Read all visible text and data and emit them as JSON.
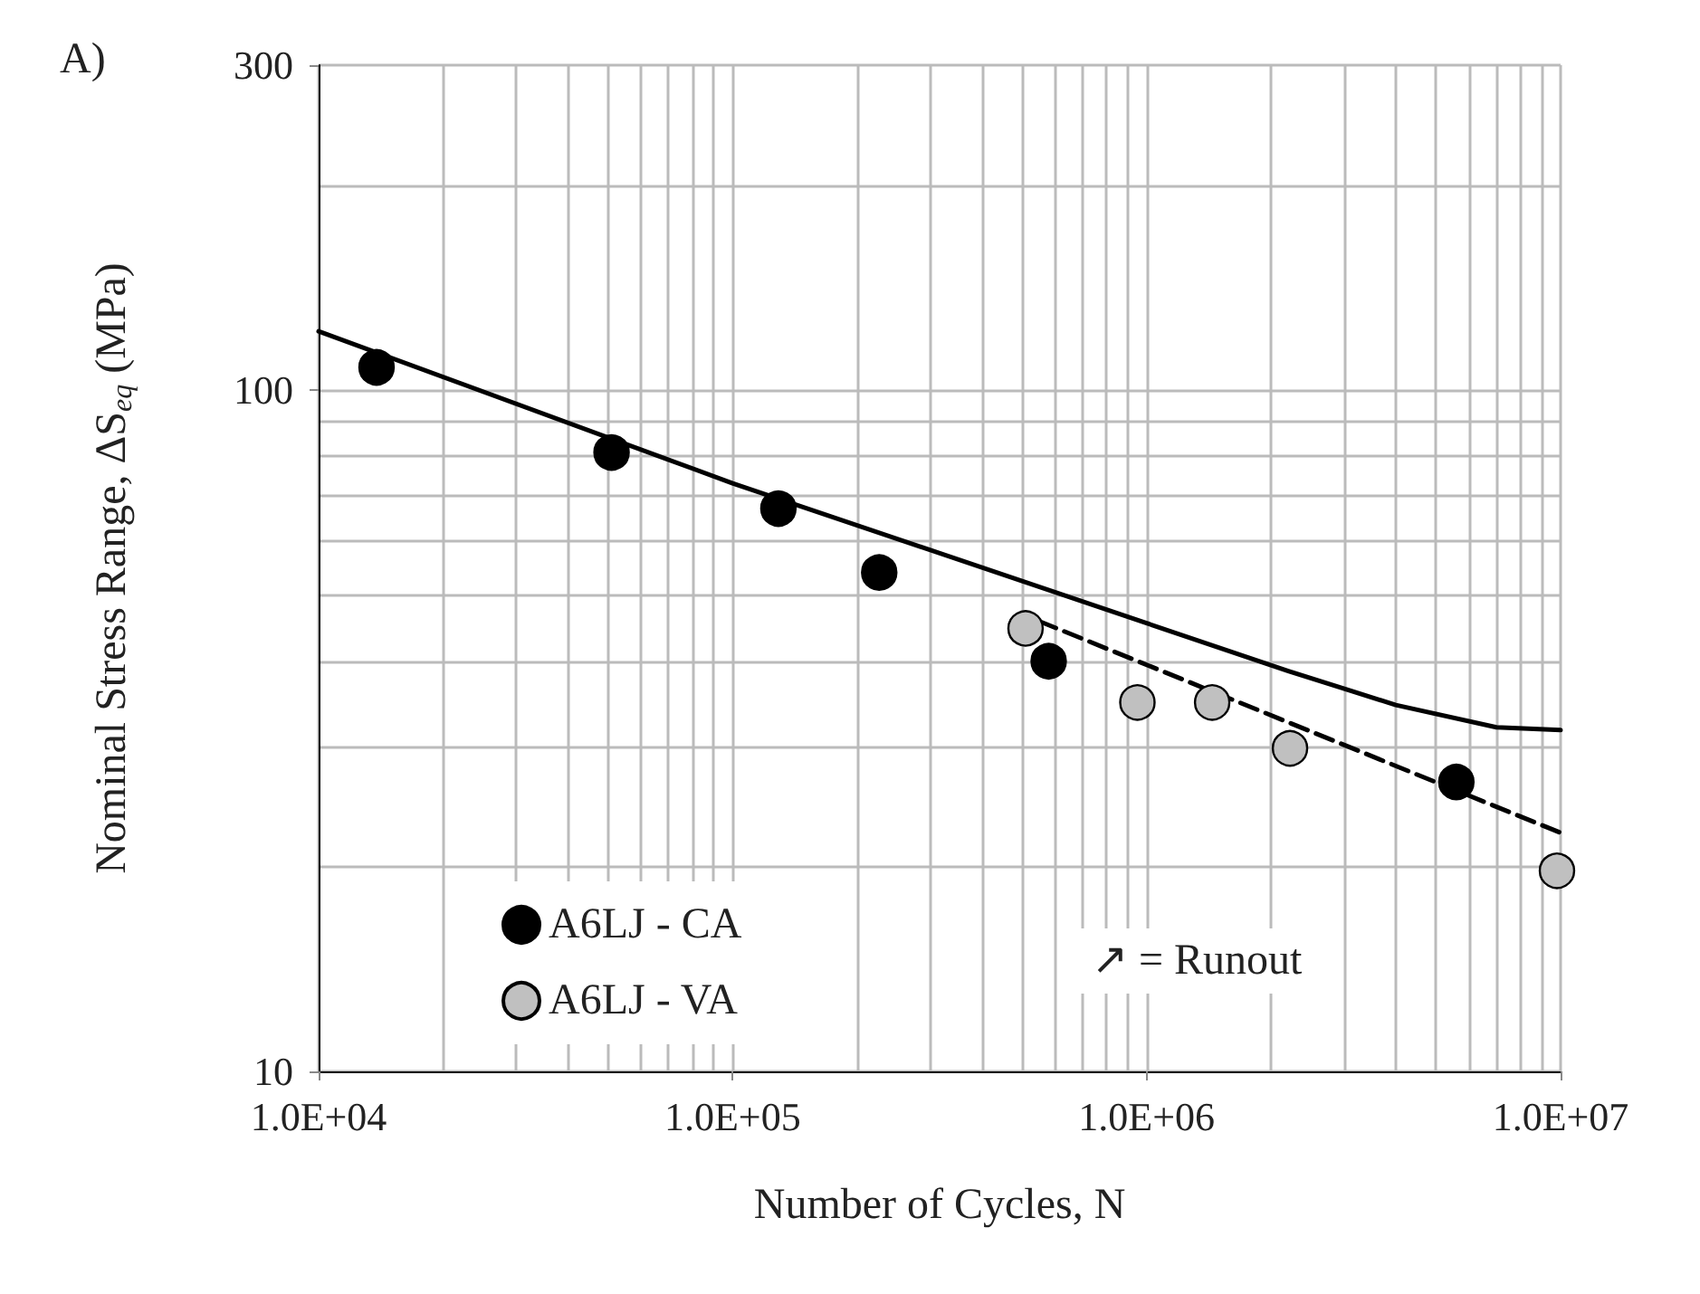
{
  "chart_data": {
    "type": "scatter",
    "title": "A)",
    "xlabel": "Number of Cycles, N",
    "ylabel": "Nominal Stress Range, ΔS$_{eq}$ (MPa)",
    "log": "xy",
    "grid": true,
    "legend": "bottom left",
    "xlim": [
      10000,
      10000000
    ],
    "xticks": [
      {
        "value": 10000,
        "label": "1.0E+04"
      },
      {
        "value": 100000,
        "label": "1.0E+05"
      },
      {
        "value": 1000000,
        "label": "1.0E+06"
      },
      {
        "value": 10000000,
        "label": "1.0E+07"
      }
    ],
    "ylim": [
      10,
      300
    ],
    "yticks": [
      10,
      100,
      300
    ],
    "annotations": [
      "↗ = Runout"
    ],
    "series": [
      {
        "name": "A6LJ - CA",
        "marker": "circle",
        "color": "#000000",
        "x": [
          13800,
          51000,
          129000,
          226000,
          580000,
          5600000
        ],
        "values": [
          108,
          81,
          67,
          54,
          40,
          26.6
        ]
      },
      {
        "name": "A6LJ - VA",
        "marker": "circle",
        "color": "#c0c0c0",
        "x": [
          510000,
          950000,
          1440000,
          2220000,
          9800000
        ],
        "values": [
          44.7,
          34.8,
          34.8,
          29.8,
          19.7
        ]
      },
      {
        "type": "line",
        "marker": "none",
        "line_style": "solid",
        "color": "#000000",
        "x": [
          10000,
          100000,
          1000000,
          2200000,
          4000000,
          7000000,
          10000000
        ],
        "values": [
          122,
          73,
          45.5,
          38.7,
          34.5,
          32,
          31.7
        ]
      },
      {
        "type": "line",
        "marker": "none",
        "line_style": "dashed",
        "color": "#000000",
        "x": [
          550000,
          10000000
        ],
        "values": [
          45.8,
          22.4
        ]
      }
    ]
  }
}
